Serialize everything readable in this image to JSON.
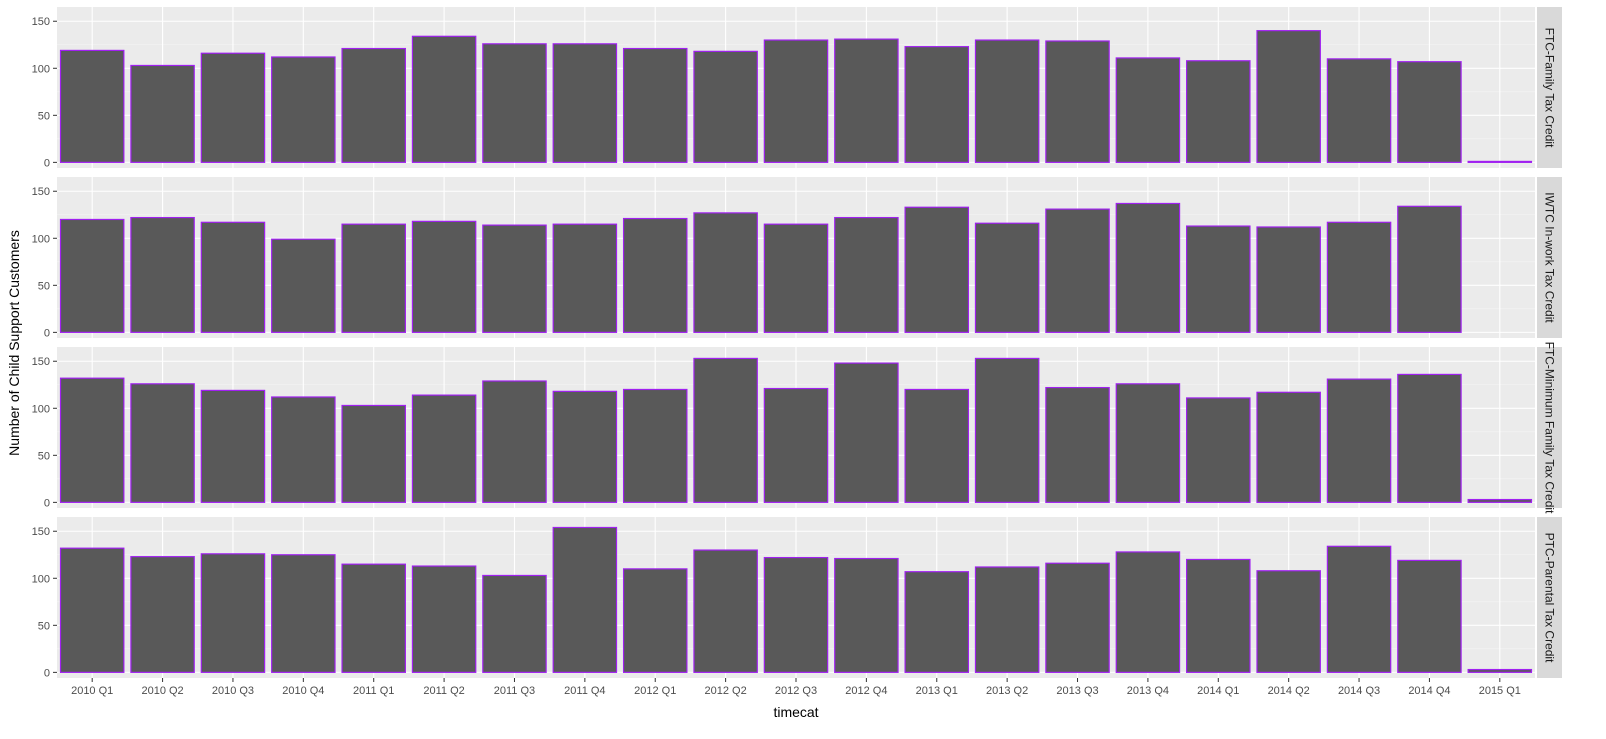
{
  "chart_data": {
    "type": "bar",
    "layout": "facet-grid-rows",
    "xlabel": "timecat",
    "ylabel": "Number of Child Support Customers",
    "ylim": [
      0,
      160
    ],
    "yticks": [
      0,
      50,
      100,
      150
    ],
    "categories": [
      "2010 Q1",
      "2010 Q2",
      "2010 Q3",
      "2010 Q4",
      "2011 Q1",
      "2011 Q2",
      "2011 Q3",
      "2011 Q4",
      "2012 Q1",
      "2012 Q2",
      "2012 Q3",
      "2012 Q4",
      "2013 Q1",
      "2013 Q2",
      "2013 Q3",
      "2013 Q4",
      "2014 Q1",
      "2014 Q2",
      "2014 Q3",
      "2014 Q4",
      "2015 Q1"
    ],
    "bar_fill": "#595959",
    "bar_outline": "#a020f0",
    "panel_background": "#ebebeb",
    "strip_background": "#d9d9d9",
    "grid": true,
    "facets": [
      {
        "strip": "FTC-Family Tax Credit",
        "values": [
          119,
          103,
          116,
          112,
          121,
          134,
          126,
          126,
          121,
          118,
          130,
          131,
          123,
          130,
          129,
          111,
          108,
          140,
          110,
          107,
          1
        ]
      },
      {
        "strip": "IWTC In-work Tax Credit",
        "values": [
          120,
          122,
          117,
          99,
          115,
          118,
          114,
          115,
          121,
          127,
          115,
          122,
          133,
          116,
          131,
          137,
          113,
          112,
          117,
          134,
          null
        ]
      },
      {
        "strip": "FTC-Minimum Family Tax Credit",
        "values": [
          132,
          126,
          119,
          112,
          103,
          114,
          129,
          118,
          120,
          153,
          121,
          148,
          120,
          153,
          122,
          126,
          111,
          117,
          131,
          136,
          3
        ]
      },
      {
        "strip": "PTC-Parental Tax Credit",
        "values": [
          132,
          123,
          126,
          125,
          115,
          113,
          103,
          154,
          110,
          130,
          122,
          121,
          107,
          112,
          116,
          128,
          120,
          108,
          134,
          119,
          3
        ]
      }
    ]
  }
}
